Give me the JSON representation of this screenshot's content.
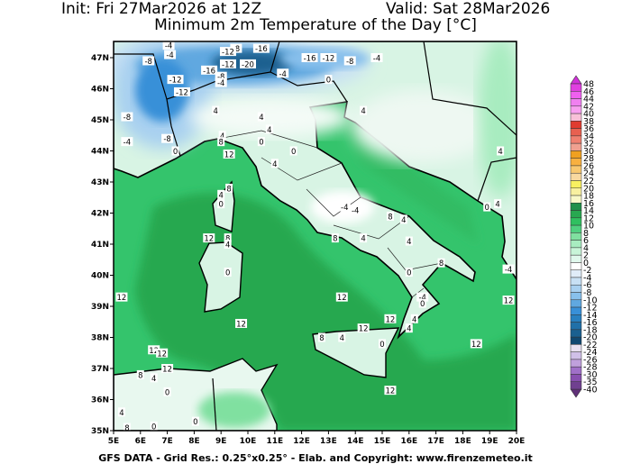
{
  "header": {
    "init": "Init: Fri 27Mar2026 at 12Z",
    "valid": "Valid: Sat 28Mar2026",
    "title": "Minimum 2m Temperature of the Day [°C]"
  },
  "footer": "GFS DATA - Grid Res.: 0.25°x0.25° - Elab. and Copyright: www.firenzemeteo.it",
  "map": {
    "lon_range": [
      5,
      20
    ],
    "lat_range": [
      35,
      47.5
    ],
    "lon_ticks": [
      "5E",
      "6E",
      "7E",
      "8E",
      "9E",
      "10E",
      "11E",
      "12E",
      "13E",
      "14E",
      "15E",
      "16E",
      "17E",
      "18E",
      "19E",
      "20E"
    ],
    "lat_ticks": [
      "35N",
      "36N",
      "37N",
      "38N",
      "39N",
      "40N",
      "41N",
      "42N",
      "43N",
      "44N",
      "45N",
      "46N",
      "47N"
    ],
    "contour_labels": [
      {
        "t": "-4",
        "lon": 7.05,
        "lat": 47.4
      },
      {
        "t": "-8",
        "lon": 9.56,
        "lat": 47.3
      },
      {
        "t": "-12",
        "lon": 9.26,
        "lat": 47.2
      },
      {
        "t": "-16",
        "lon": 10.5,
        "lat": 47.3
      },
      {
        "t": "-8",
        "lon": 6.3,
        "lat": 46.9
      },
      {
        "t": "-4",
        "lon": 7.1,
        "lat": 47.1
      },
      {
        "t": "-12",
        "lon": 9.26,
        "lat": 46.8
      },
      {
        "t": "-20",
        "lon": 10.0,
        "lat": 46.8
      },
      {
        "t": "-16",
        "lon": 8.56,
        "lat": 46.6
      },
      {
        "t": "-12",
        "lon": 7.3,
        "lat": 46.3
      },
      {
        "t": "-8",
        "lon": 9.0,
        "lat": 46.4
      },
      {
        "t": "-4",
        "lon": 9.0,
        "lat": 46.2
      },
      {
        "t": "-12",
        "lon": 7.55,
        "lat": 45.9
      },
      {
        "t": "-4",
        "lon": 11.3,
        "lat": 46.5
      },
      {
        "t": "-16",
        "lon": 12.3,
        "lat": 47.0
      },
      {
        "t": "-12",
        "lon": 13.0,
        "lat": 47.0
      },
      {
        "t": "-8",
        "lon": 13.8,
        "lat": 46.9
      },
      {
        "t": "-4",
        "lon": 14.8,
        "lat": 47.0
      },
      {
        "t": "0",
        "lon": 13.0,
        "lat": 46.3
      },
      {
        "t": "-8",
        "lon": 5.5,
        "lat": 45.1
      },
      {
        "t": "-4",
        "lon": 5.5,
        "lat": 44.3
      },
      {
        "t": "-8",
        "lon": 7.0,
        "lat": 44.4
      },
      {
        "t": "0",
        "lon": 7.3,
        "lat": 44.0
      },
      {
        "t": "4",
        "lon": 8.8,
        "lat": 45.3
      },
      {
        "t": "4",
        "lon": 10.5,
        "lat": 45.1
      },
      {
        "t": "4",
        "lon": 10.8,
        "lat": 44.7
      },
      {
        "t": "0",
        "lon": 10.5,
        "lat": 44.3
      },
      {
        "t": "4",
        "lon": 9.05,
        "lat": 44.5
      },
      {
        "t": "8",
        "lon": 9.0,
        "lat": 44.3
      },
      {
        "t": "12",
        "lon": 9.3,
        "lat": 43.9
      },
      {
        "t": "0",
        "lon": 11.7,
        "lat": 44.0
      },
      {
        "t": "4",
        "lon": 11.0,
        "lat": 43.6
      },
      {
        "t": "4",
        "lon": 14.3,
        "lat": 45.3
      },
      {
        "t": "8",
        "lon": 9.3,
        "lat": 42.8
      },
      {
        "t": "4",
        "lon": 9.0,
        "lat": 42.6
      },
      {
        "t": "0",
        "lon": 9.0,
        "lat": 42.3
      },
      {
        "t": "-4",
        "lon": 13.6,
        "lat": 42.2
      },
      {
        "t": "-4",
        "lon": 14.0,
        "lat": 42.1
      },
      {
        "t": "8",
        "lon": 15.3,
        "lat": 41.9
      },
      {
        "t": "4",
        "lon": 15.8,
        "lat": 41.8
      },
      {
        "t": "8",
        "lon": 13.25,
        "lat": 41.2
      },
      {
        "t": "4",
        "lon": 14.3,
        "lat": 41.2
      },
      {
        "t": "4",
        "lon": 16.0,
        "lat": 41.1
      },
      {
        "t": "8",
        "lon": 17.2,
        "lat": 40.4
      },
      {
        "t": "0",
        "lon": 16.0,
        "lat": 40.1
      },
      {
        "t": "-4",
        "lon": 16.5,
        "lat": 39.3
      },
      {
        "t": "0",
        "lon": 16.5,
        "lat": 39.1
      },
      {
        "t": "4",
        "lon": 16.2,
        "lat": 38.6
      },
      {
        "t": "4",
        "lon": 16.0,
        "lat": 38.3
      },
      {
        "t": "12",
        "lon": 15.3,
        "lat": 38.6
      },
      {
        "t": "12",
        "lon": 14.3,
        "lat": 38.3
      },
      {
        "t": "8",
        "lon": 12.75,
        "lat": 38.0
      },
      {
        "t": "4",
        "lon": 13.5,
        "lat": 38.0
      },
      {
        "t": "0",
        "lon": 15.0,
        "lat": 37.8
      },
      {
        "t": "12",
        "lon": 15.3,
        "lat": 36.3
      },
      {
        "t": "12",
        "lon": 18.5,
        "lat": 37.8
      },
      {
        "t": "12",
        "lon": 19.7,
        "lat": 39.2
      },
      {
        "t": "12",
        "lon": 13.5,
        "lat": 39.3
      },
      {
        "t": "12",
        "lon": 9.75,
        "lat": 38.45
      },
      {
        "t": "12",
        "lon": 5.3,
        "lat": 39.3
      },
      {
        "t": "12",
        "lon": 8.55,
        "lat": 41.2
      },
      {
        "t": "8",
        "lon": 9.25,
        "lat": 41.2
      },
      {
        "t": "4",
        "lon": 9.25,
        "lat": 41.0
      },
      {
        "t": "0",
        "lon": 9.25,
        "lat": 40.1
      },
      {
        "t": "12",
        "lon": 6.5,
        "lat": 37.6
      },
      {
        "t": "12",
        "lon": 6.8,
        "lat": 37.5
      },
      {
        "t": "12",
        "lon": 7.0,
        "lat": 37.0
      },
      {
        "t": "8",
        "lon": 6.0,
        "lat": 36.8
      },
      {
        "t": "4",
        "lon": 6.5,
        "lat": 36.7
      },
      {
        "t": "0",
        "lon": 7.0,
        "lat": 36.25
      },
      {
        "t": "0",
        "lon": 8.05,
        "lat": 35.3
      },
      {
        "t": "0",
        "lon": 6.5,
        "lat": 35.15
      },
      {
        "t": "4",
        "lon": 5.3,
        "lat": 35.6
      },
      {
        "t": "8",
        "lon": 5.5,
        "lat": 35.1
      },
      {
        "t": "-4",
        "lon": 19.7,
        "lat": 40.2
      },
      {
        "t": "0",
        "lon": 18.9,
        "lat": 42.2
      },
      {
        "t": "4",
        "lon": 19.3,
        "lat": 42.3
      },
      {
        "t": "4",
        "lon": 19.4,
        "lat": 44.0
      }
    ]
  },
  "colorbar": {
    "labels": [
      "48",
      "46",
      "44",
      "42",
      "40",
      "38",
      "36",
      "34",
      "32",
      "30",
      "28",
      "26",
      "24",
      "22",
      "20",
      "18",
      "16",
      "14",
      "12",
      "10",
      "8",
      "6",
      "4",
      "2",
      "0",
      "-2",
      "-4",
      "-6",
      "-8",
      "-10",
      "-12",
      "-14",
      "-16",
      "-18",
      "-20",
      "-22",
      "-24",
      "-26",
      "-28",
      "-30",
      "-35",
      "-40"
    ],
    "colors": [
      "#e040e0",
      "#f060f0",
      "#f080f0",
      "#f8a0f0",
      "#f8c0d8",
      "#e03c30",
      "#e86050",
      "#f08070",
      "#f0a090",
      "#f0a020",
      "#f8b040",
      "#f8c870",
      "#f8d8a0",
      "#f8f060",
      "#f8f0a0",
      "#f8f8c8",
      "#20904a",
      "#28a850",
      "#30c060",
      "#50d080",
      "#80e0a0",
      "#a8ecc0",
      "#c8f4d8",
      "#e0f8ec",
      "#ffffff",
      "#e0ecf8",
      "#c8e0f4",
      "#a8d0f0",
      "#88c0ec",
      "#60a8e0",
      "#3890d8",
      "#2880c0",
      "#2070a8",
      "#1a6090",
      "#104870",
      "#e8e0f0",
      "#d0c0e8",
      "#c0a0dc",
      "#a070c8",
      "#8850b0",
      "#704090"
    ],
    "top_arrow_color": "#d030d8",
    "bottom_arrow_color": "#603078"
  }
}
